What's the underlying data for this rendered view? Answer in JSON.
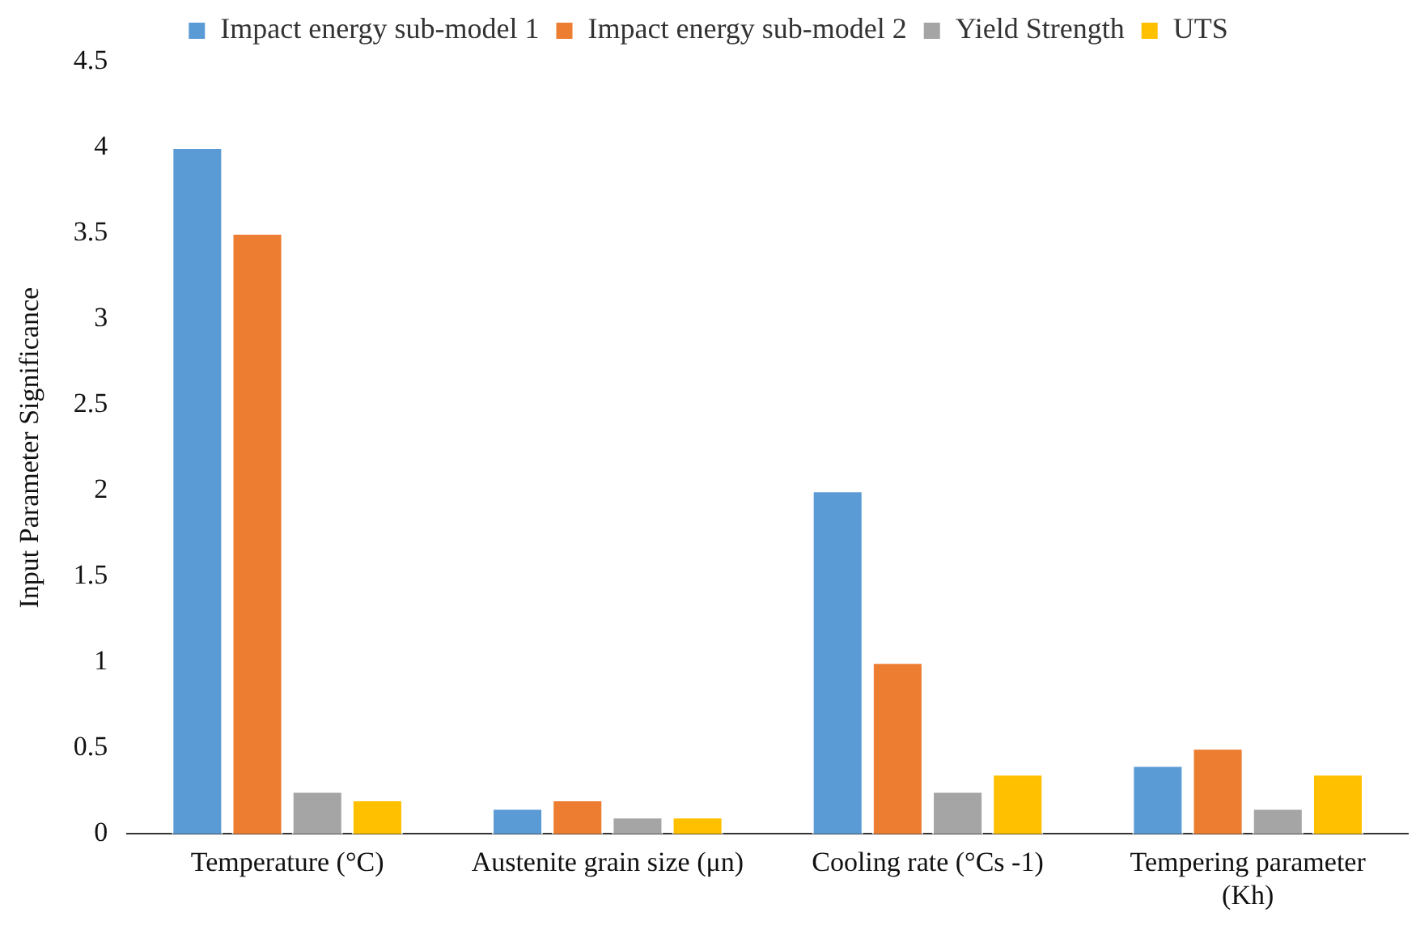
{
  "chart_data": {
    "type": "bar",
    "ylabel": "Input Parameter Significance",
    "categories": [
      "Temperature (°C)",
      "Austenite grain size (μn)",
      "Cooling rate (°Cs -1)",
      "Tempering parameter (Kh)"
    ],
    "series": [
      {
        "name": "Impact energy sub-model 1",
        "color": "#5b9bd5",
        "values": [
          4,
          0.15,
          2,
          0.4
        ]
      },
      {
        "name": "Impact energy sub-model 2",
        "color": "#ed7d31",
        "values": [
          3.5,
          0.2,
          1,
          0.5
        ]
      },
      {
        "name": "Yield Strength",
        "color": "#a5a5a5",
        "values": [
          0.25,
          0.1,
          0.25,
          0.15
        ]
      },
      {
        "name": "UTS",
        "color": "#ffc000",
        "values": [
          0.2,
          0.1,
          0.35,
          0.35
        ]
      }
    ],
    "ylim": [
      0,
      4.5
    ],
    "yticks": [
      0,
      0.5,
      1,
      1.5,
      2,
      2.5,
      3,
      3.5,
      4,
      4.5
    ],
    "grid": false,
    "legend": "top"
  }
}
